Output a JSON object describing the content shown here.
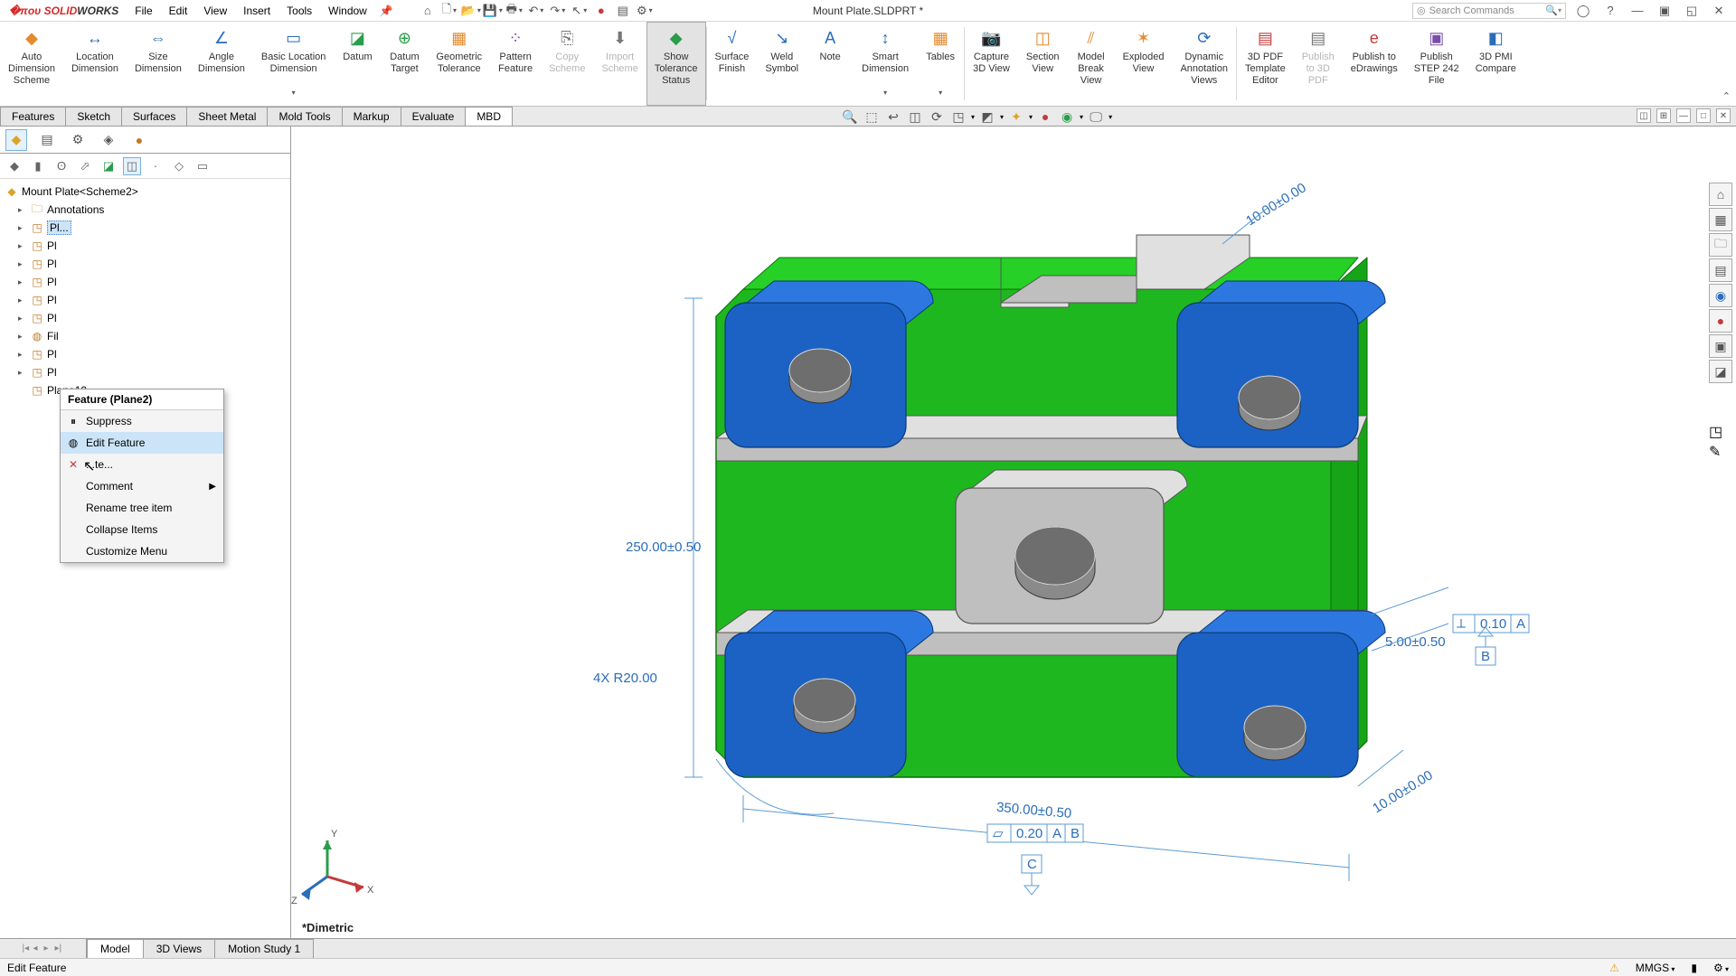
{
  "app": {
    "logo_left": "SOLID",
    "logo_right": "WORKS",
    "doc_title": "Mount Plate.SLDPRT *"
  },
  "menus": [
    "File",
    "Edit",
    "View",
    "Insert",
    "Tools",
    "Window"
  ],
  "search": {
    "placeholder": "Search Commands"
  },
  "ribbon": {
    "cmds": [
      {
        "name": "auto-dimension",
        "label1": "Auto",
        "label2": "Dimension",
        "label3": "Scheme",
        "icon": "◆",
        "ic_color": "c-orange"
      },
      {
        "name": "location-dimension",
        "label1": "Location",
        "label2": "Dimension",
        "label3": "",
        "icon": "↔",
        "ic_color": "c-blue"
      },
      {
        "name": "size-dimension",
        "label1": "Size",
        "label2": "Dimension",
        "label3": "",
        "icon": "⇔",
        "ic_color": "c-blue"
      },
      {
        "name": "angle-dimension",
        "label1": "Angle",
        "label2": "Dimension",
        "label3": "",
        "icon": "∠",
        "ic_color": "c-blue"
      },
      {
        "name": "basic-location-dimension",
        "label1": "Basic Location",
        "label2": "Dimension",
        "label3": "",
        "icon": "▭",
        "ic_color": "c-blue",
        "drop": true
      },
      {
        "name": "datum",
        "label1": "Datum",
        "label2": "",
        "label3": "",
        "icon": "◪",
        "ic_color": "c-green"
      },
      {
        "name": "datum-target",
        "label1": "Datum",
        "label2": "Target",
        "label3": "",
        "icon": "⊕",
        "ic_color": "c-green"
      },
      {
        "name": "geometric-tolerance",
        "label1": "Geometric",
        "label2": "Tolerance",
        "label3": "",
        "icon": "▦",
        "ic_color": "c-orange"
      },
      {
        "name": "pattern-feature",
        "label1": "Pattern",
        "label2": "Feature",
        "label3": "",
        "icon": "⁘",
        "ic_color": "c-purple"
      },
      {
        "name": "copy-scheme",
        "label1": "Copy",
        "label2": "Scheme",
        "label3": "",
        "icon": "⎘",
        "ic_color": "c-gray",
        "disabled": true
      },
      {
        "name": "import-scheme",
        "label1": "Import",
        "label2": "Scheme",
        "label3": "",
        "icon": "⬇",
        "ic_color": "c-gray",
        "disabled": true
      },
      {
        "name": "show-tolerance-status",
        "label1": "Show",
        "label2": "Tolerance",
        "label3": "Status",
        "icon": "◆",
        "ic_color": "c-green",
        "highlight": true
      },
      {
        "name": "sep"
      },
      {
        "name": "surface-finish",
        "label1": "Surface",
        "label2": "Finish",
        "label3": "",
        "icon": "√",
        "ic_color": "c-blue"
      },
      {
        "name": "weld-symbol",
        "label1": "Weld",
        "label2": "Symbol",
        "label3": "",
        "icon": "↘",
        "ic_color": "c-blue"
      },
      {
        "name": "note",
        "label1": "Note",
        "label2": "",
        "label3": "",
        "icon": "A",
        "ic_color": "c-blue"
      },
      {
        "name": "smart-dimension",
        "label1": "Smart",
        "label2": "Dimension",
        "label3": "",
        "icon": "↕",
        "ic_color": "c-blue",
        "drop": true
      },
      {
        "name": "tables",
        "label1": "Tables",
        "label2": "",
        "label3": "",
        "icon": "▦",
        "ic_color": "c-orange",
        "drop": true
      },
      {
        "name": "sep"
      },
      {
        "name": "capture-3d-view",
        "label1": "Capture",
        "label2": "3D View",
        "label3": "",
        "icon": "📷",
        "ic_color": "c-purple"
      },
      {
        "name": "section-view",
        "label1": "Section",
        "label2": "View",
        "label3": "",
        "icon": "◫",
        "ic_color": "c-orange"
      },
      {
        "name": "model-break-view",
        "label1": "Model",
        "label2": "Break",
        "label3": "View",
        "icon": "⫽",
        "ic_color": "c-orange"
      },
      {
        "name": "exploded-view",
        "label1": "Exploded",
        "label2": "View",
        "label3": "",
        "icon": "✶",
        "ic_color": "c-orange"
      },
      {
        "name": "dynamic-annotation-views",
        "label1": "Dynamic",
        "label2": "Annotation",
        "label3": "Views",
        "icon": "⟳",
        "ic_color": "c-blue"
      },
      {
        "name": "sep"
      },
      {
        "name": "3d-pdf-template-editor",
        "label1": "3D PDF",
        "label2": "Template",
        "label3": "Editor",
        "icon": "▤",
        "ic_color": "c-red"
      },
      {
        "name": "publish-to-3d-pdf",
        "label1": "Publish",
        "label2": "to 3D",
        "label3": "PDF",
        "icon": "▤",
        "ic_color": "c-gray",
        "disabled": true
      },
      {
        "name": "publish-to-edrawings",
        "label1": "Publish to",
        "label2": "eDrawings",
        "label3": "",
        "icon": "e",
        "ic_color": "c-red"
      },
      {
        "name": "publish-step-242",
        "label1": "Publish",
        "label2": "STEP 242",
        "label3": "File",
        "icon": "▣",
        "ic_color": "c-purple"
      },
      {
        "name": "3d-pmi-compare",
        "label1": "3D PMI",
        "label2": "Compare",
        "label3": "",
        "icon": "◧",
        "ic_color": "c-blue"
      }
    ]
  },
  "cmtabs": [
    "Features",
    "Sketch",
    "Surfaces",
    "Sheet Metal",
    "Mold Tools",
    "Markup",
    "Evaluate",
    "MBD"
  ],
  "cmtabs_active": 7,
  "tree": {
    "root": "Mount Plate<Scheme2>",
    "items": [
      {
        "label": "Annotations",
        "icon": "🗀"
      },
      {
        "label": "Pl...",
        "icon": "◳",
        "selected": true
      },
      {
        "label": "Pl",
        "icon": "◳"
      },
      {
        "label": "Pl",
        "icon": "◳"
      },
      {
        "label": "Pl",
        "icon": "◳"
      },
      {
        "label": "Pl",
        "icon": "◳"
      },
      {
        "label": "Pl",
        "icon": "◳"
      },
      {
        "label": "Fil",
        "icon": "◍"
      },
      {
        "label": "Pl",
        "icon": "◳"
      },
      {
        "label": "Pl",
        "icon": "◳"
      },
      {
        "label": "Plane10",
        "icon": "◳",
        "noarrow": true
      }
    ]
  },
  "ctx": {
    "title": "Feature (Plane2)",
    "items": [
      {
        "label": "Suppress",
        "icon": "⏸"
      },
      {
        "label": "Edit Feature",
        "icon": "◍",
        "hover": true
      },
      {
        "label": "...te...",
        "icon": "✕"
      },
      {
        "label": "Comment",
        "sub": true
      },
      {
        "label": "Rename tree item"
      },
      {
        "label": "Collapse Items"
      },
      {
        "label": "Customize Menu"
      }
    ]
  },
  "dims": {
    "height": "250.00±0.50",
    "radius": "4X R20.00",
    "width": "350.00±0.50",
    "fcf_bottom": "0.20",
    "fcf_bottom_ref": [
      "A",
      "B"
    ],
    "datum_bottom": "C",
    "right_tol": "5.00±0.50",
    "fcf_right": "0.10",
    "fcf_right_ref": [
      "A"
    ],
    "datum_right": "B",
    "thk_top": "10.00±0.00",
    "thk_bot": "10.00±0.00"
  },
  "colors": {
    "plate_green": "#1fb71f",
    "plate_green_side": "#16a516",
    "plate_green_top": "#26d026",
    "pad_blue": "#1c62c4",
    "pad_blue_side": "#134b99",
    "pad_blue_top": "#2d78e0",
    "metal": "#bfbfbf",
    "metal_dark": "#9d9d9d",
    "metal_light": "#e0e0e0",
    "dim_blue": "#5b9bd5"
  },
  "viewtabs": [
    "Model",
    "3D Views",
    "Motion Study 1"
  ],
  "viewtabs_active": 0,
  "viewname": "*Dimetric",
  "status": {
    "left": "Edit Feature",
    "units": "MMGS"
  }
}
